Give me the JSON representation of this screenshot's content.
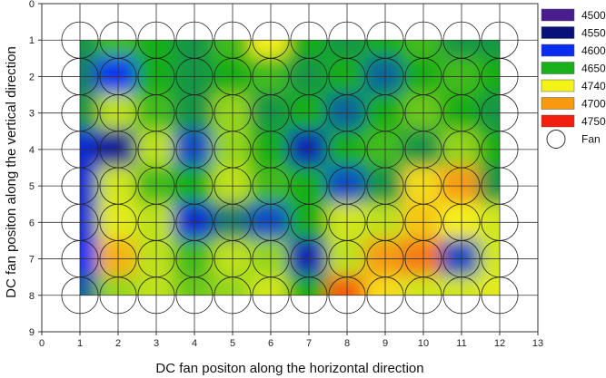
{
  "chart_data": {
    "type": "heatmap",
    "title": "",
    "xlabel": "DC fan positon along the horizontal direction",
    "ylabel": "DC fan positon along the vertical direction",
    "xlim": [
      0,
      13
    ],
    "ylim": [
      0,
      9
    ],
    "y_inverted": true,
    "xticks": [
      "0",
      "1",
      "2",
      "3",
      "4",
      "5",
      "6",
      "7",
      "8",
      "9",
      "10",
      "11",
      "12",
      "13"
    ],
    "yticks": [
      "0",
      "1",
      "2",
      "3",
      "4",
      "5",
      "6",
      "7",
      "8",
      "9"
    ],
    "grid": true,
    "legend_position": "right",
    "legend": [
      {
        "label": "4500",
        "color": "#4a1d8f"
      },
      {
        "label": "4550",
        "color": "#08107a"
      },
      {
        "label": "4600",
        "color": "#0a2cf0"
      },
      {
        "label": "4650",
        "color": "#19b019"
      },
      {
        "label": "4740",
        "color": "#f3f31a"
      },
      {
        "label": "4700",
        "color": "#f79a0f"
      },
      {
        "label": "4750",
        "color": "#f21f0f"
      },
      {
        "label": "Fan",
        "marker": "circle"
      }
    ],
    "fan_grid": {
      "cols": [
        1,
        2,
        3,
        4,
        5,
        6,
        7,
        8,
        9,
        10,
        11,
        12
      ],
      "rows": [
        1,
        2,
        3,
        4,
        5,
        6,
        7,
        8
      ]
    },
    "field_extent": {
      "x": [
        1,
        12
      ],
      "y": [
        1,
        8
      ]
    },
    "grid_values": [
      [
        4640,
        4660,
        4650,
        4640,
        4660,
        4720,
        4650,
        4640,
        4650,
        4660,
        4640,
        4640
      ],
      [
        4630,
        4600,
        4650,
        4640,
        4650,
        4660,
        4640,
        4650,
        4620,
        4650,
        4660,
        4650
      ],
      [
        4640,
        4690,
        4660,
        4640,
        4680,
        4640,
        4650,
        4620,
        4650,
        4670,
        4650,
        4640
      ],
      [
        4590,
        4570,
        4690,
        4610,
        4680,
        4650,
        4580,
        4650,
        4660,
        4640,
        4680,
        4650
      ],
      [
        4590,
        4700,
        4660,
        4650,
        4690,
        4660,
        4650,
        4610,
        4640,
        4730,
        4760,
        4640
      ],
      [
        4590,
        4710,
        4690,
        4590,
        4630,
        4610,
        4650,
        4700,
        4690,
        4740,
        4720,
        4700
      ],
      [
        4600,
        4750,
        4690,
        4660,
        4690,
        4680,
        4580,
        4690,
        4760,
        4770,
        4610,
        4700
      ],
      [
        4620,
        4680,
        4690,
        4670,
        4680,
        4700,
        4650,
        4780,
        4730,
        4700,
        4700,
        4710
      ]
    ]
  }
}
